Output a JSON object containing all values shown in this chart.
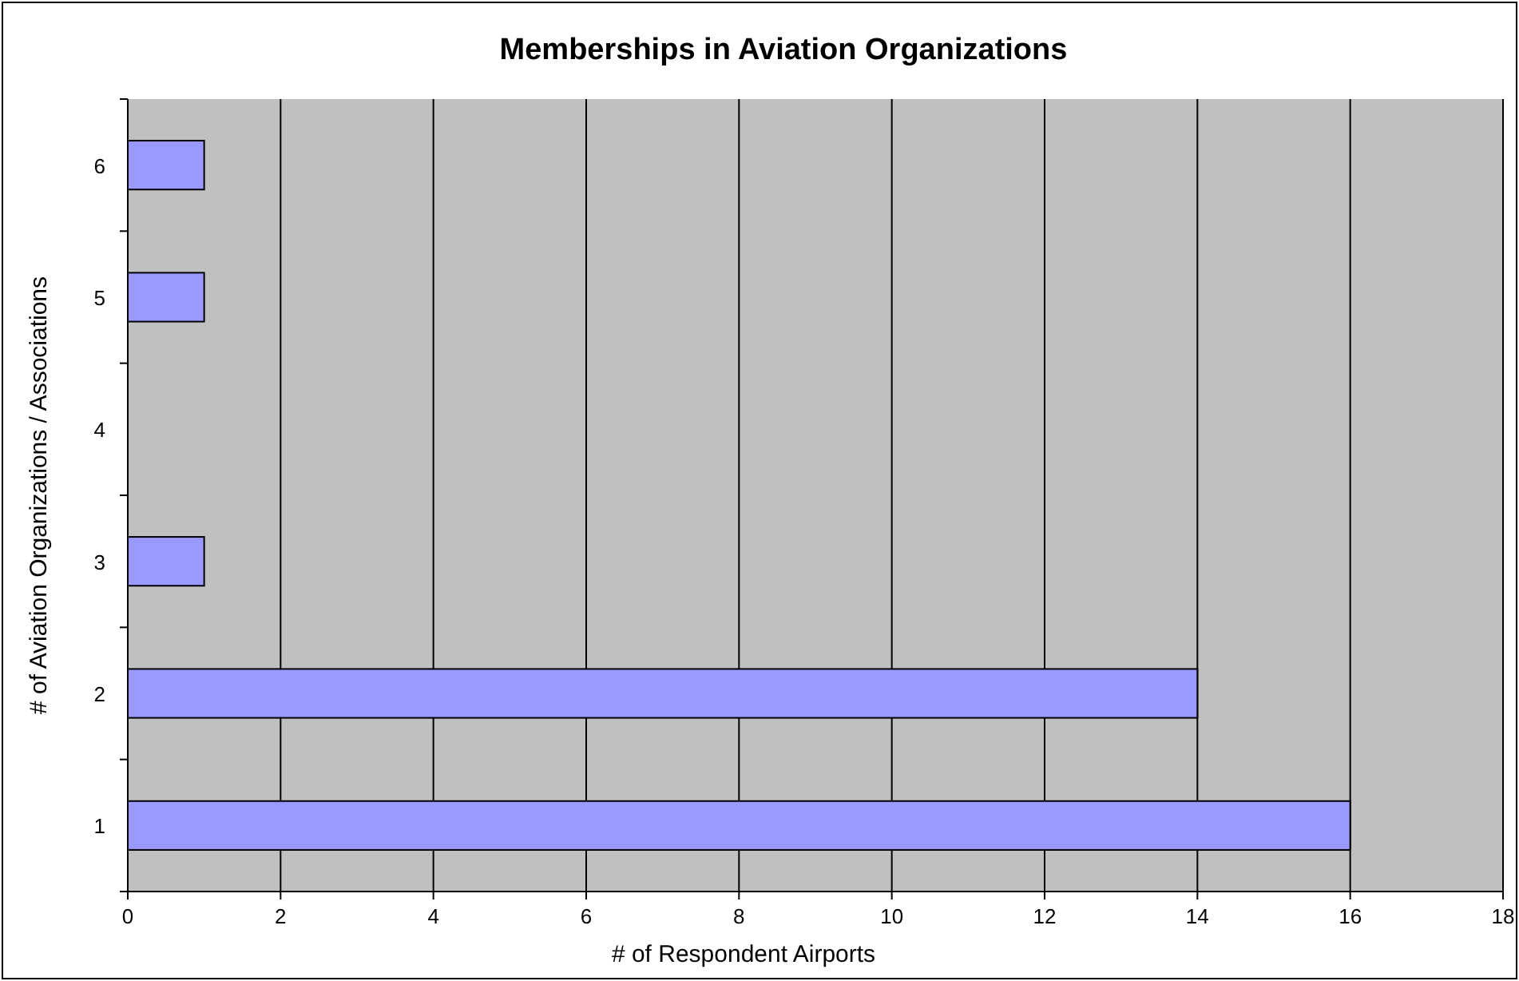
{
  "chart_data": {
    "type": "bar",
    "orientation": "horizontal",
    "title": "Memberships in Aviation Organizations",
    "xlabel": "# of Respondent Airports",
    "ylabel": "# of Aviation Organizations / Associations",
    "categories": [
      "6",
      "5",
      "4",
      "3",
      "2",
      "1"
    ],
    "values": [
      1,
      1,
      null,
      1,
      14,
      16
    ],
    "color": "#9999ff",
    "xlim": [
      0,
      18
    ],
    "xticks": [
      0,
      2,
      4,
      6,
      8,
      10,
      12,
      14,
      16,
      18
    ],
    "grid": "x"
  }
}
